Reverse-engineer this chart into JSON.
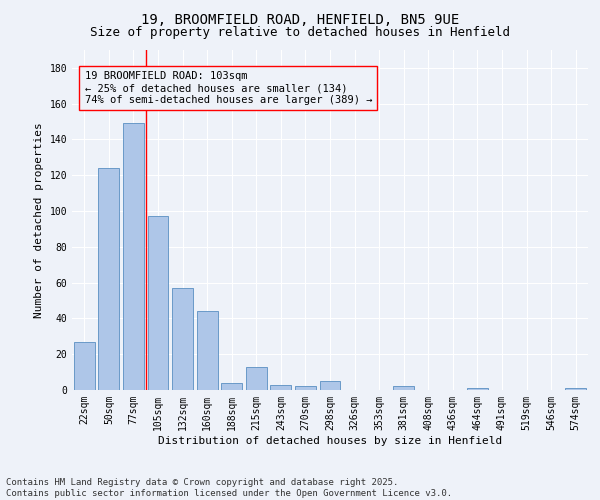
{
  "title1": "19, BROOMFIELD ROAD, HENFIELD, BN5 9UE",
  "title2": "Size of property relative to detached houses in Henfield",
  "xlabel": "Distribution of detached houses by size in Henfield",
  "ylabel": "Number of detached properties",
  "bar_labels": [
    "22sqm",
    "50sqm",
    "77sqm",
    "105sqm",
    "132sqm",
    "160sqm",
    "188sqm",
    "215sqm",
    "243sqm",
    "270sqm",
    "298sqm",
    "326sqm",
    "353sqm",
    "381sqm",
    "408sqm",
    "436sqm",
    "464sqm",
    "491sqm",
    "519sqm",
    "546sqm",
    "574sqm"
  ],
  "bar_values": [
    27,
    124,
    149,
    97,
    57,
    44,
    4,
    13,
    3,
    2,
    5,
    0,
    0,
    2,
    0,
    0,
    1,
    0,
    0,
    0,
    1
  ],
  "bar_color": "#aec6e8",
  "bar_edge_color": "#5a8fc2",
  "ylim": [
    0,
    190
  ],
  "yticks": [
    0,
    20,
    40,
    60,
    80,
    100,
    120,
    140,
    160,
    180
  ],
  "red_line_index": 3,
  "annotation_text": "19 BROOMFIELD ROAD: 103sqm\n← 25% of detached houses are smaller (134)\n74% of semi-detached houses are larger (389) →",
  "footer": "Contains HM Land Registry data © Crown copyright and database right 2025.\nContains public sector information licensed under the Open Government Licence v3.0.",
  "background_color": "#eef2f9",
  "grid_color": "#ffffff",
  "title_fontsize": 10,
  "subtitle_fontsize": 9,
  "axis_label_fontsize": 8,
  "tick_fontsize": 7,
  "annotation_fontsize": 7.5,
  "footer_fontsize": 6.5
}
